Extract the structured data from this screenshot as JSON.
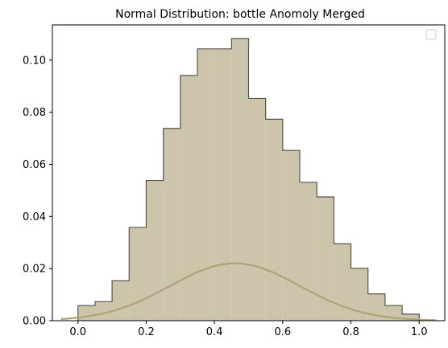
{
  "chart_data": {
    "type": "histogram",
    "title": "Normal Distribution: bottle Anomoly Merged",
    "xlabel": "",
    "ylabel": "",
    "xlim": [
      -0.075,
      1.075
    ],
    "ylim": [
      0,
      0.1135
    ],
    "x_ticks": [
      "0.0",
      "0.2",
      "0.4",
      "0.6",
      "0.8",
      "1.0"
    ],
    "x_tick_values": [
      0.0,
      0.2,
      0.4,
      0.6,
      0.8,
      1.0
    ],
    "y_ticks": [
      "0.00",
      "0.02",
      "0.04",
      "0.06",
      "0.08",
      "0.10"
    ],
    "y_tick_values": [
      0.0,
      0.02,
      0.04,
      0.06,
      0.08,
      0.1
    ],
    "grid": false,
    "legend": {
      "placement": "top-right",
      "entries": []
    },
    "histogram": {
      "bin_edges": [
        0.0,
        0.05,
        0.1,
        0.15,
        0.2,
        0.25,
        0.3,
        0.35,
        0.4,
        0.45,
        0.5,
        0.55,
        0.6,
        0.65,
        0.7,
        0.75,
        0.8,
        0.85,
        0.9,
        0.95,
        1.0
      ],
      "values": [
        0.0058,
        0.0073,
        0.0153,
        0.0358,
        0.0538,
        0.0738,
        0.0941,
        0.1043,
        0.1043,
        0.1083,
        0.0853,
        0.0773,
        0.0653,
        0.0531,
        0.0475,
        0.0295,
        0.0201,
        0.0103,
        0.0058,
        0.0025
      ],
      "fill_color": "#cdc5ab",
      "edge_color": "#55554f"
    },
    "curve": {
      "type": "normal_pdf_scaled",
      "x_range": [
        -0.05,
        1.05
      ],
      "mean": 0.46,
      "std": 0.19,
      "peak": 0.022,
      "color": "#aea279"
    }
  }
}
